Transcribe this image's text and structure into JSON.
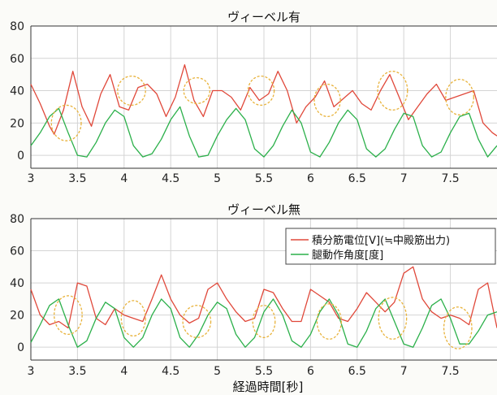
{
  "figure": {
    "xlabel": "経過時間[秒]"
  },
  "colors": {
    "emg": "#e0483a",
    "angle": "#2bb04a",
    "ellipse": "#e8b23a",
    "grid": "#d4d4d4",
    "axis": "#333333"
  },
  "chart_data": [
    {
      "type": "line",
      "title": "ヴィーベル有",
      "xlim": [
        3,
        8
      ],
      "ylim": [
        -8,
        80
      ],
      "x_ticks": [
        3,
        3.5,
        4,
        4.5,
        5,
        5.5,
        6,
        6.5,
        7,
        7.5
      ],
      "x_tick_labels": [
        "3",
        "3.5",
        "4",
        "4.5",
        "5",
        "5.5",
        "6",
        "6.5",
        "7",
        "7.5"
      ],
      "y_ticks": [
        0,
        20,
        40,
        60,
        80
      ],
      "y_tick_labels": [
        "0",
        "20",
        "40",
        "60",
        "80"
      ],
      "grid": true,
      "series": [
        {
          "name": "積分筋電位[V](≒中殿筋出力)",
          "color": "#e0483a",
          "x": [
            3.0,
            3.1,
            3.2,
            3.25,
            3.35,
            3.45,
            3.55,
            3.65,
            3.75,
            3.85,
            3.95,
            4.05,
            4.15,
            4.25,
            4.35,
            4.45,
            4.55,
            4.65,
            4.75,
            4.85,
            4.95,
            5.05,
            5.15,
            5.25,
            5.35,
            5.45,
            5.55,
            5.65,
            5.75,
            5.85,
            5.95,
            6.05,
            6.15,
            6.25,
            6.35,
            6.45,
            6.55,
            6.65,
            6.75,
            6.85,
            6.95,
            7.05,
            7.15,
            7.25,
            7.35,
            7.45,
            7.55,
            7.65,
            7.75,
            7.85,
            7.95,
            8.0
          ],
          "y": [
            44,
            32,
            18,
            13,
            28,
            52,
            30,
            18,
            38,
            50,
            30,
            28,
            42,
            44,
            38,
            24,
            36,
            56,
            34,
            24,
            40,
            40,
            36,
            28,
            42,
            34,
            38,
            52,
            40,
            20,
            30,
            36,
            46,
            30,
            35,
            40,
            32,
            28,
            40,
            50,
            36,
            22,
            30,
            38,
            44,
            34,
            36,
            38,
            40,
            20,
            14,
            12
          ]
        },
        {
          "name": "腿動作角度[度]",
          "color": "#2bb04a",
          "x": [
            3.0,
            3.1,
            3.2,
            3.3,
            3.4,
            3.5,
            3.6,
            3.7,
            3.8,
            3.9,
            4.0,
            4.1,
            4.2,
            4.3,
            4.4,
            4.5,
            4.6,
            4.7,
            4.8,
            4.9,
            5.0,
            5.1,
            5.2,
            5.3,
            5.4,
            5.5,
            5.6,
            5.7,
            5.8,
            5.9,
            6.0,
            6.1,
            6.2,
            6.3,
            6.4,
            6.5,
            6.6,
            6.7,
            6.8,
            6.9,
            7.0,
            7.1,
            7.2,
            7.3,
            7.4,
            7.5,
            7.6,
            7.7,
            7.8,
            7.9,
            8.0
          ],
          "y": [
            6,
            14,
            24,
            29,
            14,
            0,
            -1,
            8,
            20,
            28,
            24,
            6,
            -1,
            1,
            10,
            22,
            30,
            12,
            -1,
            0,
            12,
            22,
            29,
            22,
            4,
            -1,
            6,
            18,
            28,
            20,
            2,
            -1,
            8,
            20,
            28,
            22,
            4,
            -1,
            4,
            16,
            26,
            24,
            6,
            -1,
            2,
            14,
            24,
            26,
            10,
            -1,
            6
          ]
        }
      ]
    },
    {
      "type": "line",
      "title": "ヴィーベル無",
      "xlim": [
        3,
        8
      ],
      "ylim": [
        -8,
        80
      ],
      "x_ticks": [
        3,
        3.5,
        4,
        4.5,
        5,
        5.5,
        6,
        6.5,
        7,
        7.5
      ],
      "x_tick_labels": [
        "3",
        "3.5",
        "4",
        "4.5",
        "5",
        "5.5",
        "6",
        "6.5",
        "7",
        "7.5"
      ],
      "y_ticks": [
        0,
        20,
        40,
        60,
        80
      ],
      "y_tick_labels": [
        "0",
        "20",
        "40",
        "60",
        "80"
      ],
      "grid": true,
      "legend": {
        "position": "top-right"
      },
      "series": [
        {
          "name": "積分筋電位[V](≒中殿筋出力)",
          "color": "#e0483a",
          "x": [
            3.0,
            3.1,
            3.2,
            3.3,
            3.4,
            3.5,
            3.6,
            3.7,
            3.8,
            3.9,
            4.0,
            4.1,
            4.2,
            4.3,
            4.4,
            4.5,
            4.6,
            4.7,
            4.8,
            4.9,
            5.0,
            5.1,
            5.2,
            5.3,
            5.4,
            5.5,
            5.6,
            5.7,
            5.8,
            5.9,
            6.0,
            6.1,
            6.2,
            6.3,
            6.4,
            6.5,
            6.6,
            6.7,
            6.8,
            6.9,
            7.0,
            7.1,
            7.2,
            7.3,
            7.4,
            7.5,
            7.6,
            7.7,
            7.8,
            7.9,
            8.0
          ],
          "y": [
            36,
            20,
            14,
            16,
            12,
            40,
            38,
            18,
            14,
            24,
            20,
            18,
            16,
            30,
            45,
            30,
            20,
            15,
            18,
            36,
            40,
            30,
            22,
            16,
            18,
            36,
            34,
            24,
            16,
            16,
            36,
            32,
            28,
            18,
            16,
            24,
            34,
            28,
            22,
            28,
            46,
            50,
            30,
            22,
            18,
            20,
            18,
            14,
            36,
            40,
            12
          ]
        },
        {
          "name": "腿動作角度[度]",
          "color": "#2bb04a",
          "x": [
            3.0,
            3.1,
            3.2,
            3.3,
            3.4,
            3.5,
            3.6,
            3.7,
            3.8,
            3.9,
            4.0,
            4.1,
            4.2,
            4.3,
            4.4,
            4.5,
            4.6,
            4.7,
            4.8,
            4.9,
            5.0,
            5.1,
            5.2,
            5.3,
            5.4,
            5.5,
            5.6,
            5.7,
            5.8,
            5.9,
            6.0,
            6.1,
            6.2,
            6.3,
            6.4,
            6.5,
            6.6,
            6.7,
            6.8,
            6.9,
            7.0,
            7.1,
            7.2,
            7.3,
            7.4,
            7.5,
            7.6,
            7.7,
            7.8,
            7.9,
            8.0
          ],
          "y": [
            3,
            14,
            26,
            30,
            14,
            0,
            4,
            18,
            28,
            24,
            6,
            0,
            6,
            20,
            30,
            24,
            6,
            0,
            8,
            20,
            28,
            24,
            8,
            0,
            6,
            22,
            30,
            20,
            4,
            0,
            8,
            22,
            30,
            20,
            2,
            0,
            10,
            24,
            30,
            16,
            2,
            0,
            12,
            26,
            30,
            18,
            2,
            2,
            10,
            20,
            22
          ]
        }
      ],
      "legend_entries": [
        "積分筋電位[V](≒中殿筋出力)",
        "腿動作角度[度]"
      ]
    }
  ],
  "ellipses": [
    [
      {
        "cx": 3.38,
        "cy": 20,
        "rx": 0.16,
        "ry": 11
      },
      {
        "cx": 4.08,
        "cy": 40,
        "rx": 0.15,
        "ry": 9
      },
      {
        "cx": 4.78,
        "cy": 40,
        "rx": 0.14,
        "ry": 8
      },
      {
        "cx": 5.47,
        "cy": 40,
        "rx": 0.14,
        "ry": 9
      },
      {
        "cx": 6.18,
        "cy": 34,
        "rx": 0.14,
        "ry": 10
      },
      {
        "cx": 6.88,
        "cy": 40,
        "rx": 0.16,
        "ry": 12
      },
      {
        "cx": 7.6,
        "cy": 36,
        "rx": 0.15,
        "ry": 11
      }
    ],
    [
      {
        "cx": 3.4,
        "cy": 20,
        "rx": 0.15,
        "ry": 12
      },
      {
        "cx": 4.1,
        "cy": 18,
        "rx": 0.13,
        "ry": 11
      },
      {
        "cx": 4.78,
        "cy": 16,
        "rx": 0.15,
        "ry": 10
      },
      {
        "cx": 5.5,
        "cy": 16,
        "rx": 0.12,
        "ry": 10
      },
      {
        "cx": 6.2,
        "cy": 16,
        "rx": 0.13,
        "ry": 11
      },
      {
        "cx": 6.88,
        "cy": 18,
        "rx": 0.15,
        "ry": 13
      },
      {
        "cx": 7.58,
        "cy": 12,
        "rx": 0.15,
        "ry": 13
      }
    ]
  ]
}
